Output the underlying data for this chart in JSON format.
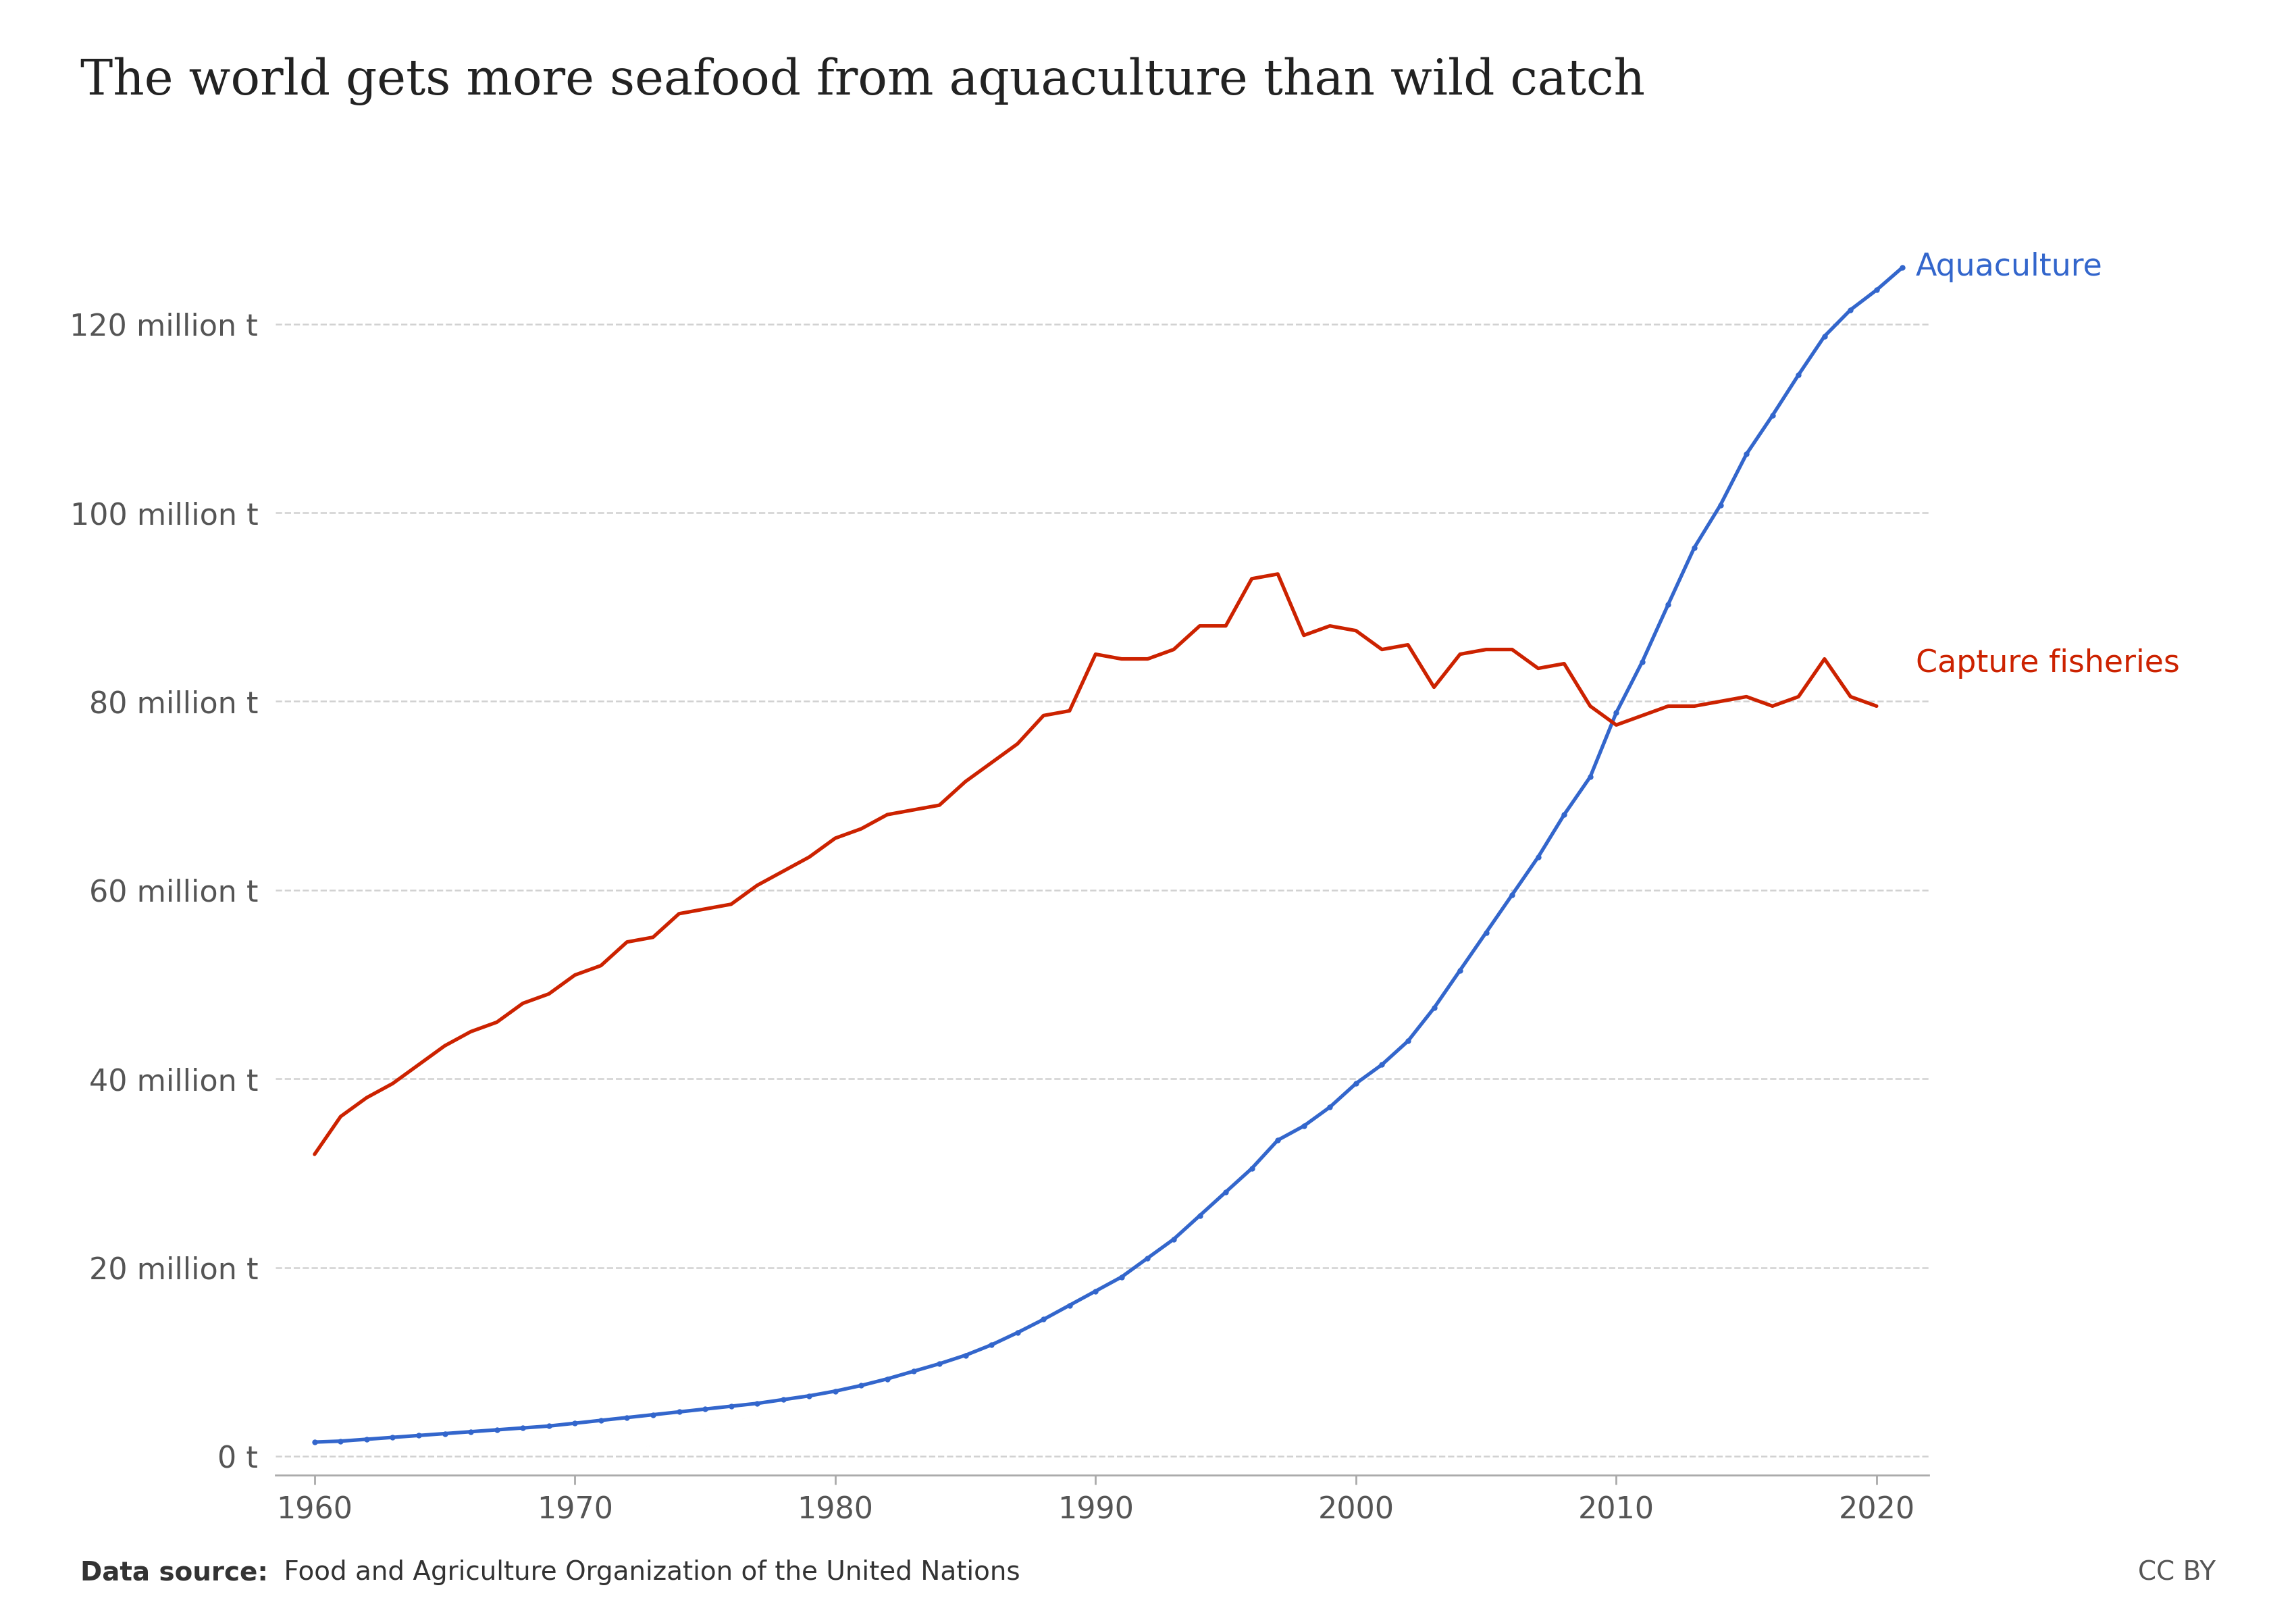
{
  "title": "The world gets more seafood from aquaculture than wild catch",
  "datasource_bold": "Data source:",
  "datasource_normal": " Food and Agriculture Organization of the United Nations",
  "cc_by": "CC BY",
  "aquaculture_label": "Aquaculture",
  "capture_label": "Capture fisheries",
  "aquaculture_color": "#3366CC",
  "capture_color": "#CC2200",
  "background_color": "#FFFFFF",
  "grid_color": "#CCCCCC",
  "title_color": "#222222",
  "tick_color": "#555555",
  "ytick_labels": [
    "0 t",
    "20 million t",
    "40 million t",
    "60 million t",
    "80 million t",
    "100 million t",
    "120 million t"
  ],
  "ytick_values": [
    0,
    20,
    40,
    60,
    80,
    100,
    120
  ],
  "xlim": [
    1958.5,
    2022
  ],
  "ylim": [
    -2,
    132
  ],
  "years_aquaculture": [
    1960,
    1961,
    1962,
    1963,
    1964,
    1965,
    1966,
    1967,
    1968,
    1969,
    1970,
    1971,
    1972,
    1973,
    1974,
    1975,
    1976,
    1977,
    1978,
    1979,
    1980,
    1981,
    1982,
    1983,
    1984,
    1985,
    1986,
    1987,
    1988,
    1989,
    1990,
    1991,
    1992,
    1993,
    1994,
    1995,
    1996,
    1997,
    1998,
    1999,
    2000,
    2001,
    2002,
    2003,
    2004,
    2005,
    2006,
    2007,
    2008,
    2009,
    2010,
    2011,
    2012,
    2013,
    2014,
    2015,
    2016,
    2017,
    2018,
    2019,
    2020,
    2021
  ],
  "values_aquaculture": [
    1.5,
    1.6,
    1.8,
    2.0,
    2.2,
    2.4,
    2.6,
    2.8,
    3.0,
    3.2,
    3.5,
    3.8,
    4.1,
    4.4,
    4.7,
    5.0,
    5.3,
    5.6,
    6.0,
    6.4,
    6.9,
    7.5,
    8.2,
    9.0,
    9.8,
    10.7,
    11.8,
    13.1,
    14.5,
    16.0,
    17.5,
    19.0,
    21.0,
    23.0,
    25.5,
    28.0,
    30.5,
    33.5,
    35.0,
    37.0,
    39.5,
    41.5,
    44.0,
    47.5,
    51.5,
    55.5,
    59.5,
    63.5,
    68.0,
    72.0,
    78.8,
    84.2,
    90.3,
    96.3,
    100.8,
    106.2,
    110.3,
    114.6,
    118.7,
    121.5,
    123.6,
    126.0
  ],
  "years_capture": [
    1960,
    1961,
    1962,
    1963,
    1964,
    1965,
    1966,
    1967,
    1968,
    1969,
    1970,
    1971,
    1972,
    1973,
    1974,
    1975,
    1976,
    1977,
    1978,
    1979,
    1980,
    1981,
    1982,
    1983,
    1984,
    1985,
    1986,
    1987,
    1988,
    1989,
    1990,
    1991,
    1992,
    1993,
    1994,
    1995,
    1996,
    1997,
    1998,
    1999,
    2000,
    2001,
    2002,
    2003,
    2004,
    2005,
    2006,
    2007,
    2008,
    2009,
    2010,
    2011,
    2012,
    2013,
    2014,
    2015,
    2016,
    2017,
    2018,
    2019,
    2020
  ],
  "values_capture": [
    32.0,
    36.0,
    38.0,
    39.5,
    41.5,
    43.5,
    45.0,
    46.0,
    48.0,
    49.0,
    51.0,
    52.0,
    54.5,
    55.0,
    57.5,
    58.0,
    58.5,
    60.5,
    62.0,
    63.5,
    65.5,
    66.5,
    68.0,
    68.5,
    69.0,
    71.5,
    73.5,
    75.5,
    78.5,
    79.0,
    85.0,
    84.5,
    84.5,
    85.5,
    88.0,
    88.0,
    93.0,
    93.5,
    87.0,
    88.0,
    87.5,
    85.5,
    86.0,
    81.5,
    85.0,
    85.5,
    85.5,
    83.5,
    84.0,
    79.5,
    77.5,
    78.5,
    79.5,
    79.5,
    80.0,
    80.5,
    79.5,
    80.5,
    84.5,
    80.5,
    79.5
  ]
}
